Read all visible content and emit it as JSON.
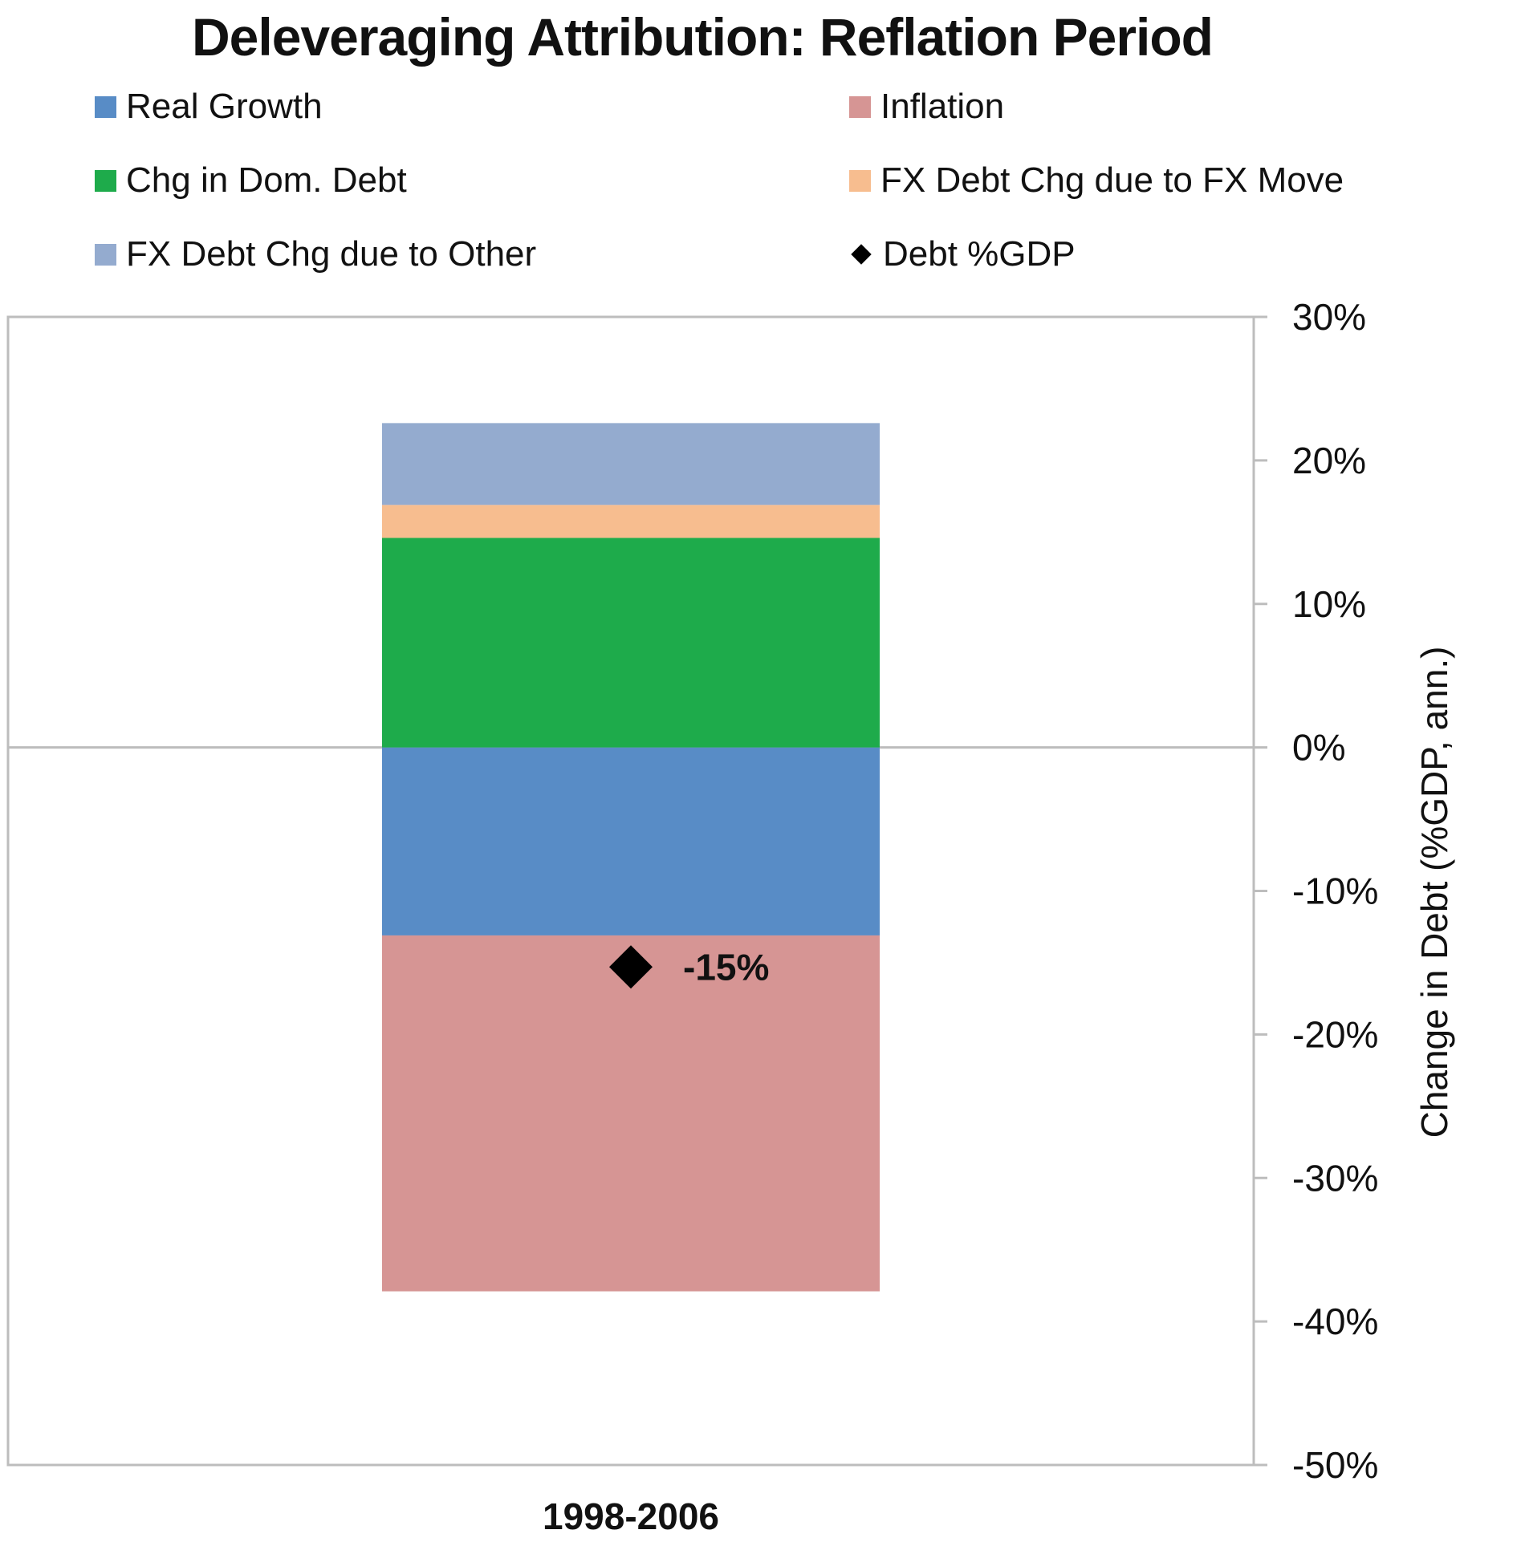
{
  "chart_data": {
    "type": "bar",
    "stacked": true,
    "title": "Deleveraging Attribution: Reflation Period",
    "categories": [
      "1998-2006"
    ],
    "ylabel": "Change in Debt (%GDP, ann.)",
    "xlabel": "",
    "ylim": [
      -0.5,
      0.3
    ],
    "yticks": [
      "30%",
      "20%",
      "10%",
      "0%",
      "-10%",
      "-20%",
      "-30%",
      "-40%",
      "-50%"
    ],
    "ytick_values": [
      0.3,
      0.2,
      0.1,
      0.0,
      -0.1,
      -0.2,
      -0.3,
      -0.4,
      -0.5
    ],
    "axis_position": "right",
    "legend_position": "top",
    "series": [
      {
        "name": "Real Growth",
        "values": [
          -0.131
        ],
        "color": "#588cc6"
      },
      {
        "name": "Inflation",
        "values": [
          -0.248
        ],
        "color": "#d69594"
      },
      {
        "name": "Chg in Dom. Debt",
        "values": [
          0.146
        ],
        "color": "#1eab4b"
      },
      {
        "name": "FX Debt Chg due to FX Move",
        "values": [
          0.023
        ],
        "color": "#f7bd8f"
      },
      {
        "name": "FX Debt Chg due to Other",
        "values": [
          0.057
        ],
        "color": "#94abcf"
      }
    ],
    "marker_series": {
      "name": "Debt %GDP",
      "values": [
        -0.153
      ],
      "label": "-15%",
      "color": "#000000"
    }
  }
}
